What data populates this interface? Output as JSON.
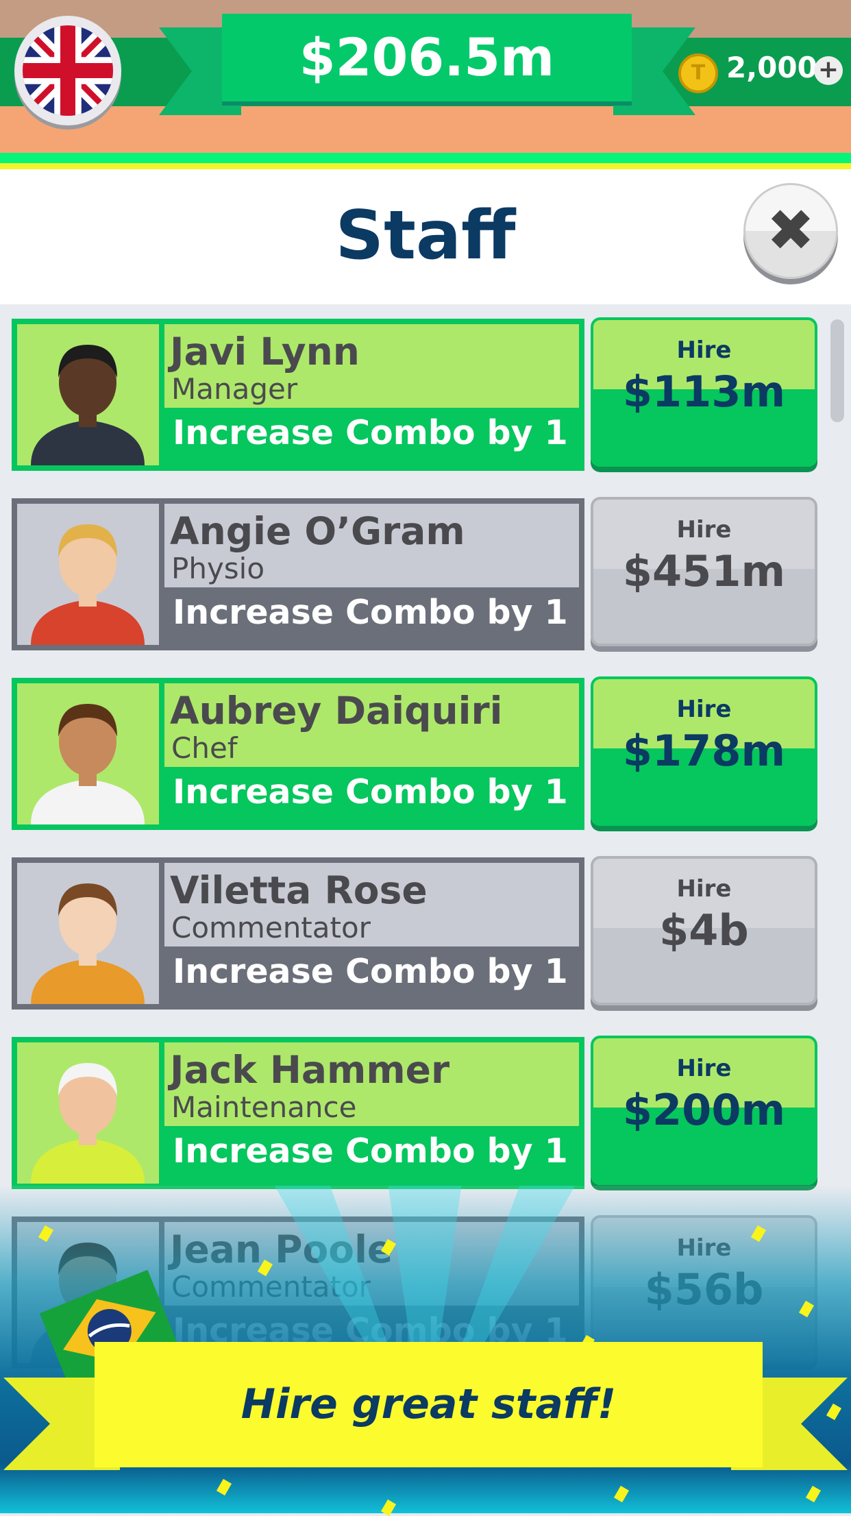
{
  "topbar": {
    "language_flag": "united-kingdom-flag-icon",
    "cash": "$206.5m",
    "coin_icon": "gold-coin-icon",
    "coin_symbol": "T",
    "coins": "2,000",
    "add_coins_icon": "+"
  },
  "header": {
    "title": "Staff",
    "close_icon": "✖"
  },
  "staff": [
    {
      "name": "Javi Lynn",
      "role": "Manager",
      "bonus": "Increase Combo by 1",
      "hire_label": "Hire",
      "price": "$113m",
      "affordable": true,
      "skin": "#5a3a26",
      "hair": "#1d1d1d",
      "shirt": "#2e3542"
    },
    {
      "name": "Angie O’Gram",
      "role": "Physio",
      "bonus": "Increase Combo by 1",
      "hire_label": "Hire",
      "price": "$451m",
      "affordable": false,
      "skin": "#f1c9a5",
      "hair": "#e2b14a",
      "shirt": "#d8432e"
    },
    {
      "name": "Aubrey Daiquiri",
      "role": "Chef",
      "bonus": "Increase Combo by 1",
      "hire_label": "Hire",
      "price": "$178m",
      "affordable": true,
      "skin": "#c68a5c",
      "hair": "#5b3418",
      "shirt": "#f4f4f4"
    },
    {
      "name": "Viletta Rose",
      "role": "Commentator",
      "bonus": "Increase Combo by 1",
      "hire_label": "Hire",
      "price": "$4b",
      "affordable": false,
      "skin": "#f3d2b6",
      "hair": "#7a4a26",
      "shirt": "#e89a2a"
    },
    {
      "name": "Jack Hammer",
      "role": "Maintenance",
      "bonus": "Increase Combo by 1",
      "hire_label": "Hire",
      "price": "$200m",
      "affordable": true,
      "skin": "#f0c29e",
      "hair": "#f4f4f4",
      "shirt": "#d7ef3a"
    },
    {
      "name": "Jean Poole",
      "role": "Commentator",
      "bonus": "Increase Combo by 1",
      "hire_label": "Hire",
      "price": "$56b",
      "affordable": false,
      "skin": "#a9876c",
      "hair": "#3b2616",
      "shirt": "#6a7fa0"
    }
  ],
  "promo": {
    "text": "Hire great staff!",
    "flag": "brazil-flag-icon"
  },
  "colors": {
    "green": "#06c65e",
    "lime": "#aee86a",
    "navy": "#0b3a63",
    "yellow": "#fbfb2e",
    "grey": "#6b6f7a"
  }
}
